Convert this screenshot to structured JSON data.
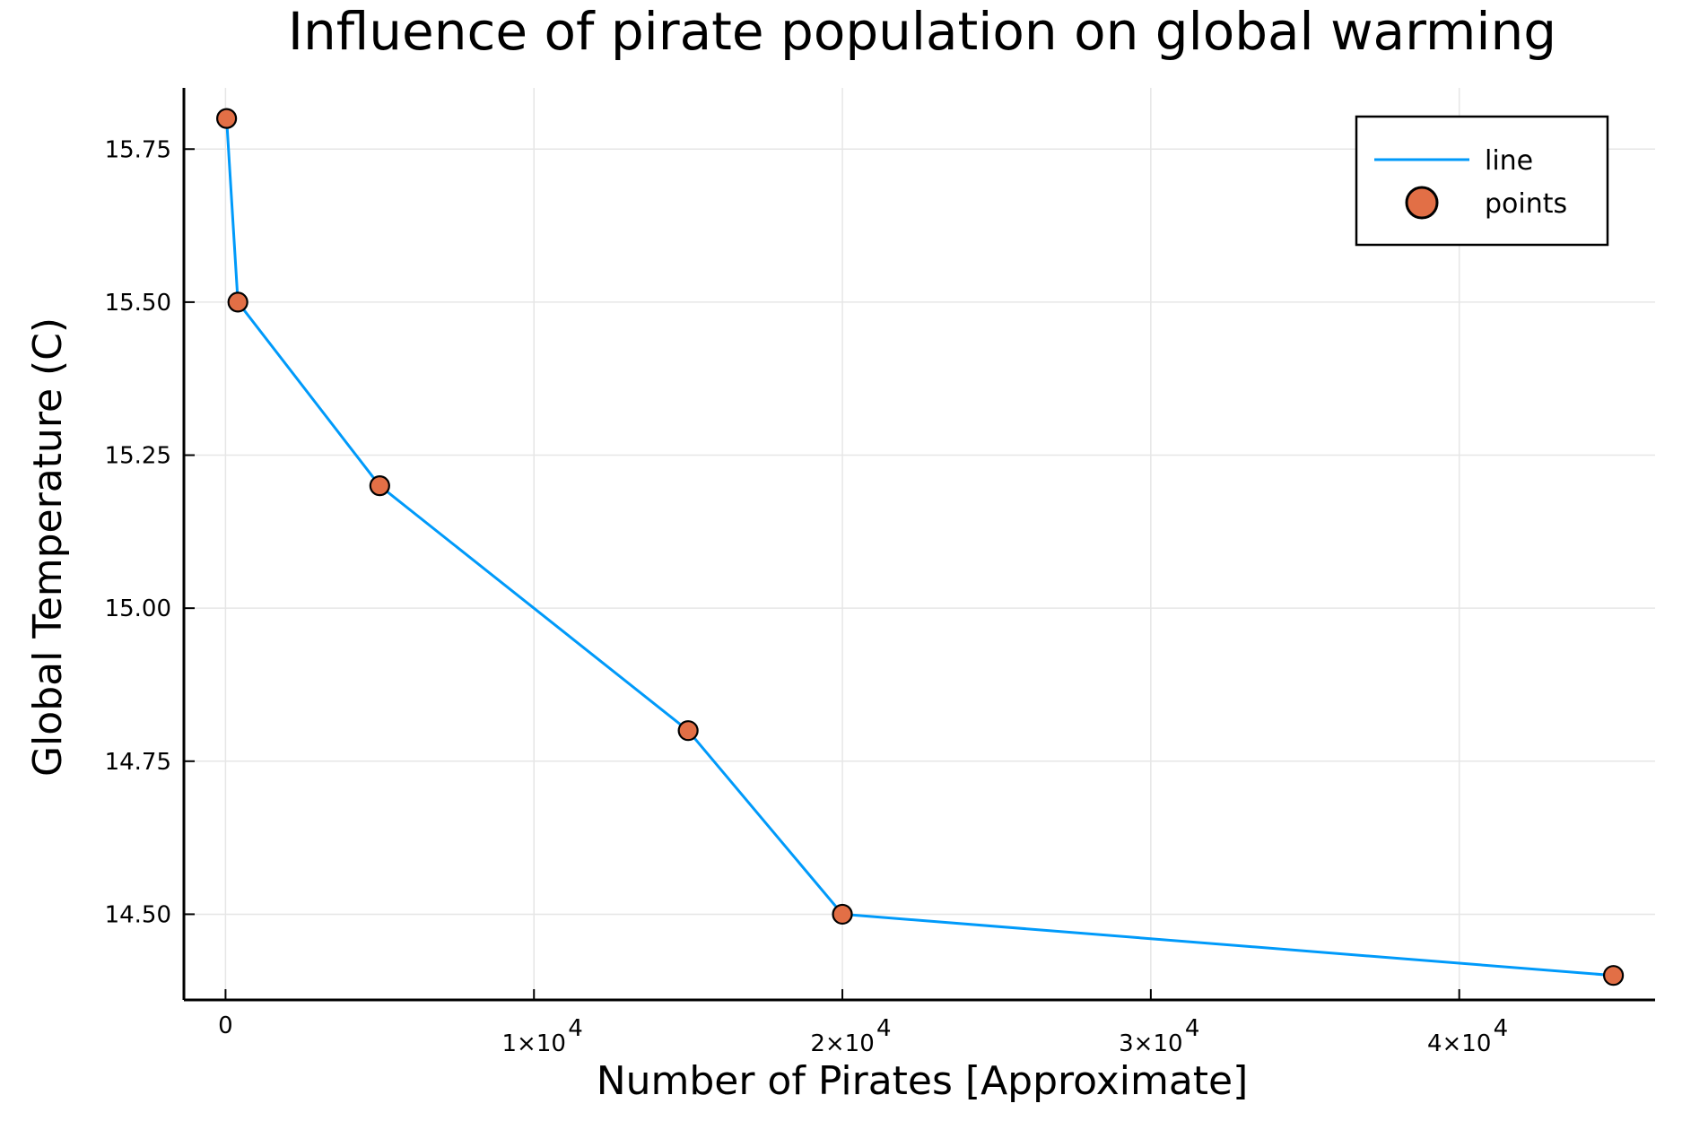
{
  "chart_data": {
    "type": "line",
    "title": "Influence of pirate population on global warming",
    "xlabel": "Number of Pirates [Approximate]",
    "ylabel": "Global Temperature (C)",
    "x": [
      35,
      400,
      5000,
      15000,
      20000,
      45000
    ],
    "series": [
      {
        "name": "line",
        "kind": "line",
        "color": "#009AFA",
        "values": [
          15.8,
          15.5,
          15.2,
          14.8,
          14.5,
          14.4
        ]
      },
      {
        "name": "points",
        "kind": "scatter",
        "color": "#E26F46",
        "values": [
          15.8,
          15.5,
          15.2,
          14.8,
          14.5,
          14.4
        ]
      }
    ],
    "xlim": [
      -1350,
      46350
    ],
    "ylim": [
      14.36,
      15.85
    ],
    "xticks": [
      {
        "value": 0,
        "base": "0",
        "exp": ""
      },
      {
        "value": 10000,
        "base": "1×10",
        "exp": "4"
      },
      {
        "value": 20000,
        "base": "2×10",
        "exp": "4"
      },
      {
        "value": 30000,
        "base": "3×10",
        "exp": "4"
      },
      {
        "value": 40000,
        "base": "4×10",
        "exp": "4"
      }
    ],
    "yticks": [
      {
        "value": 14.5,
        "label": "14.50"
      },
      {
        "value": 14.75,
        "label": "14.75"
      },
      {
        "value": 15.0,
        "label": "15.00"
      },
      {
        "value": 15.25,
        "label": "15.25"
      },
      {
        "value": 15.5,
        "label": "15.50"
      },
      {
        "value": 15.75,
        "label": "15.75"
      }
    ],
    "grid": true,
    "legend_position": "top-right"
  }
}
